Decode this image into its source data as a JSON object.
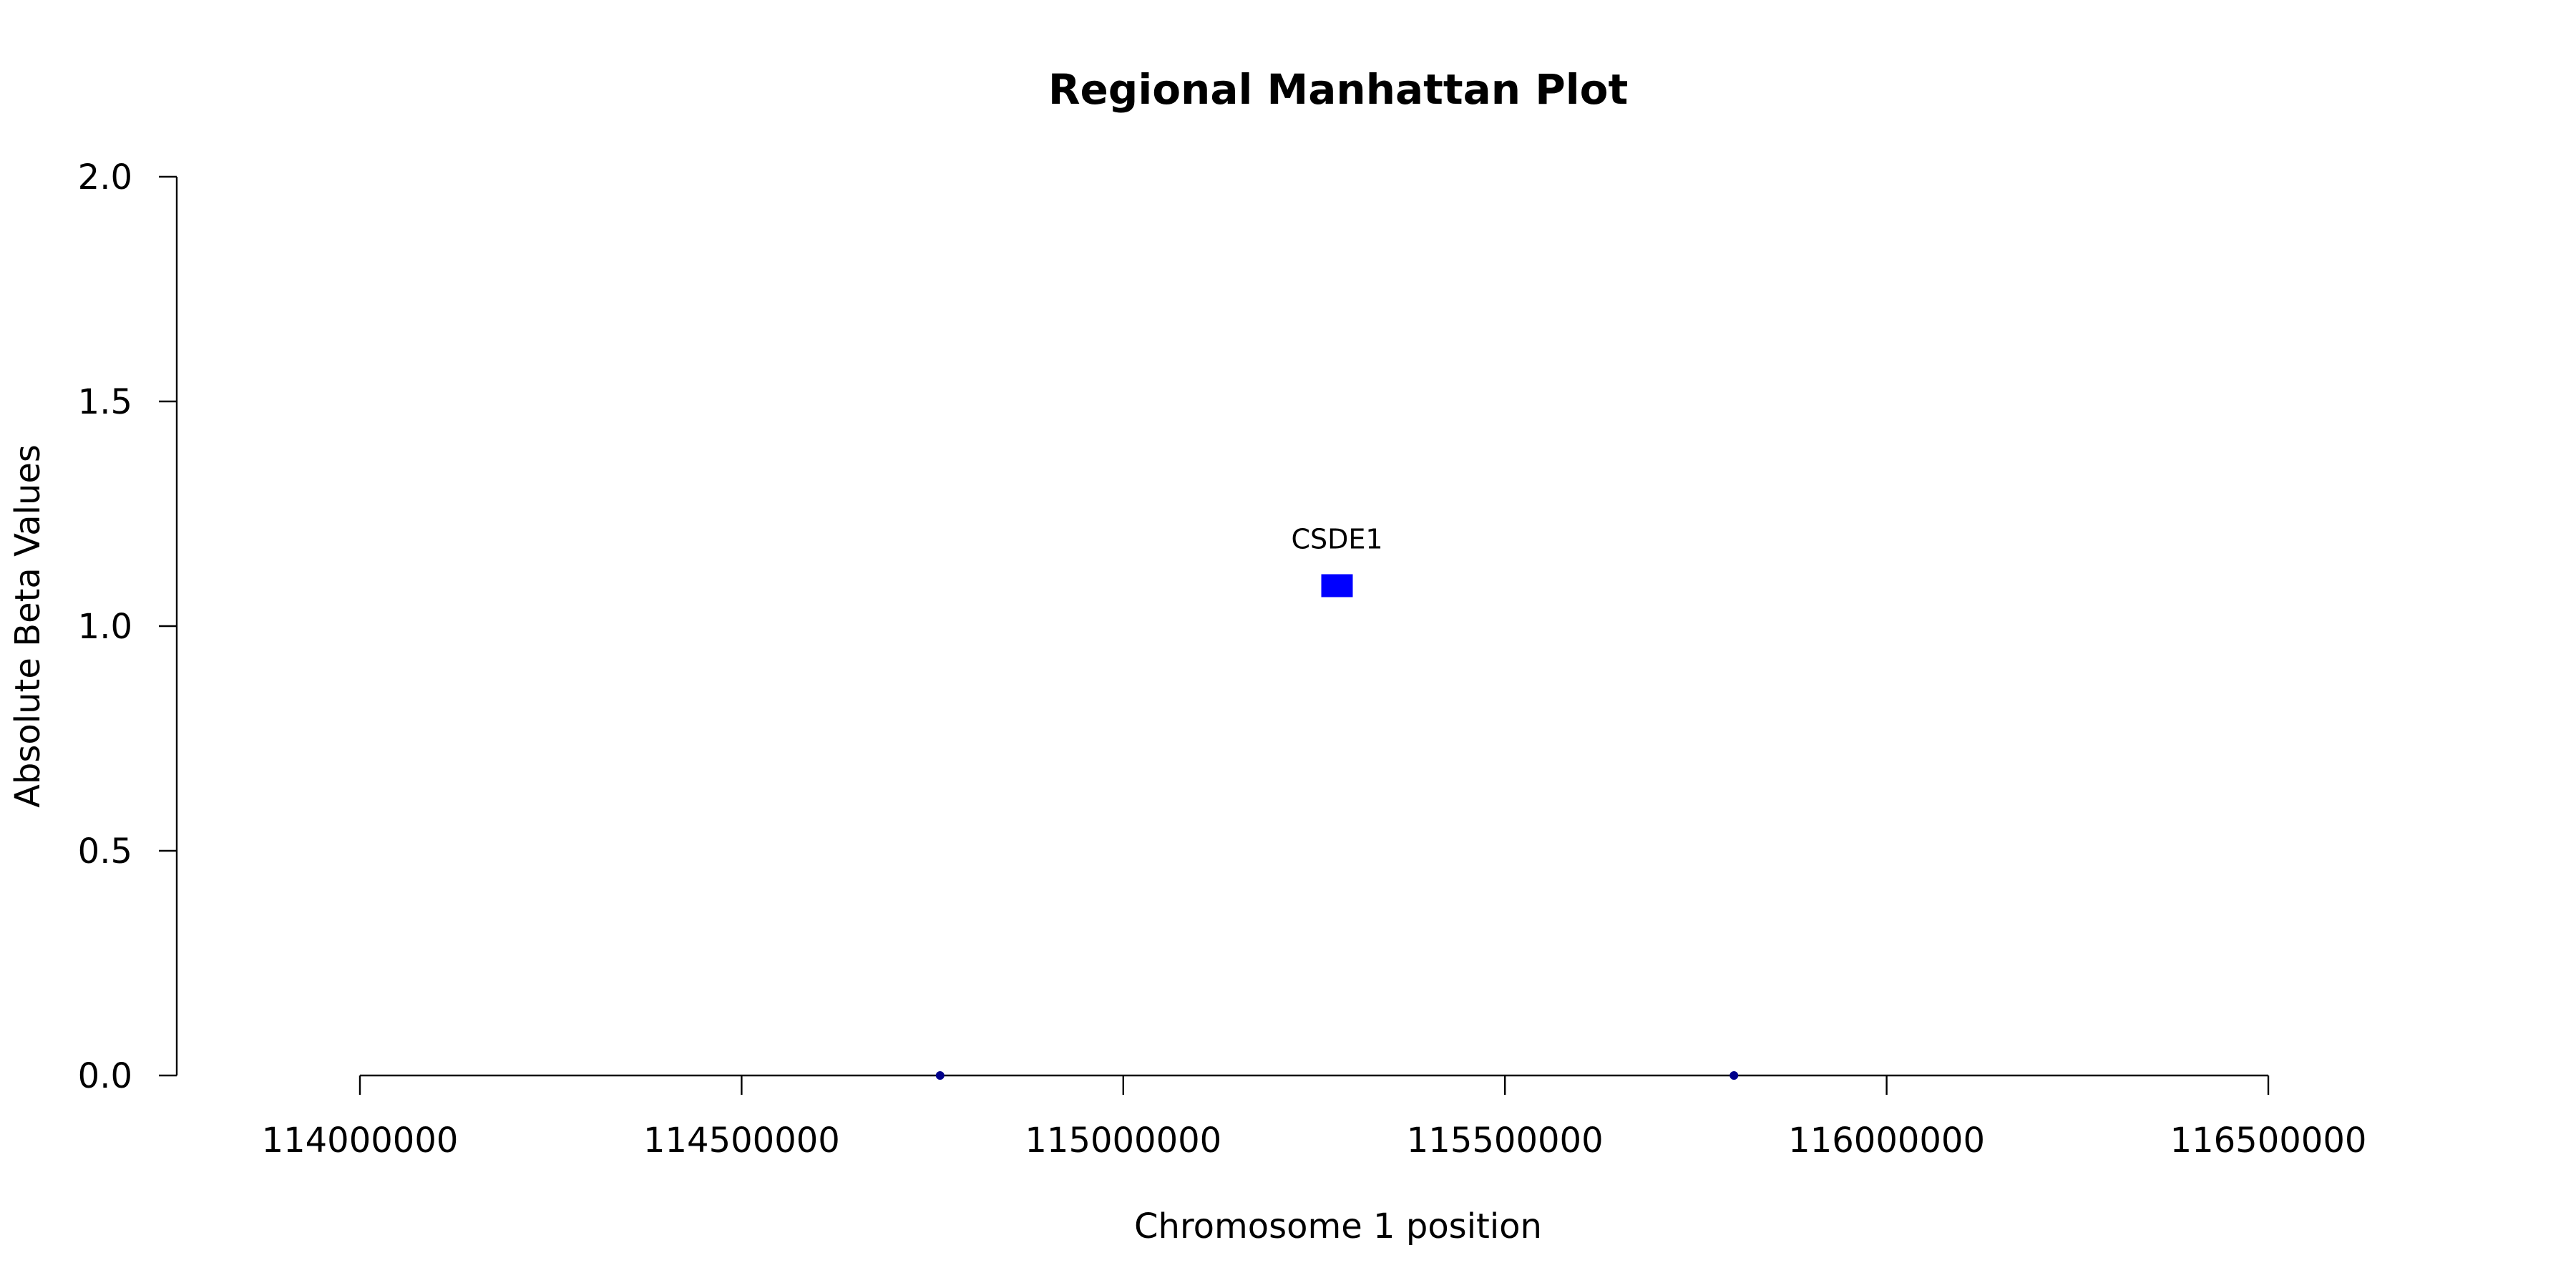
{
  "chart_data": {
    "type": "scatter",
    "title": "Regional Manhattan Plot",
    "xlabel": "Chromosome 1 position",
    "ylabel": "Absolute Beta Values",
    "xlim": [
      114000000,
      116500000
    ],
    "ylim": [
      0,
      2
    ],
    "xticks": [
      114000000,
      114500000,
      115000000,
      115500000,
      116000000,
      116500000
    ],
    "xtick_labels": [
      "114000000",
      "114500000",
      "115000000",
      "115500000",
      "116000000",
      "116500000"
    ],
    "yticks": [
      0,
      0.5,
      1,
      1.5,
      2
    ],
    "ytick_labels": [
      "0.0",
      "0.5",
      "1.0",
      "1.5",
      "2.0"
    ],
    "grid": false,
    "points": [
      {
        "x": 114760000,
        "y": 0,
        "shape": "circle",
        "color": "#00008b",
        "label": ""
      },
      {
        "x": 115800000,
        "y": 0,
        "shape": "circle",
        "color": "#00008b",
        "label": ""
      },
      {
        "x": 115280000,
        "y": 1.09,
        "shape": "square",
        "color": "#0000ff",
        "label": "CSDE1"
      }
    ]
  }
}
